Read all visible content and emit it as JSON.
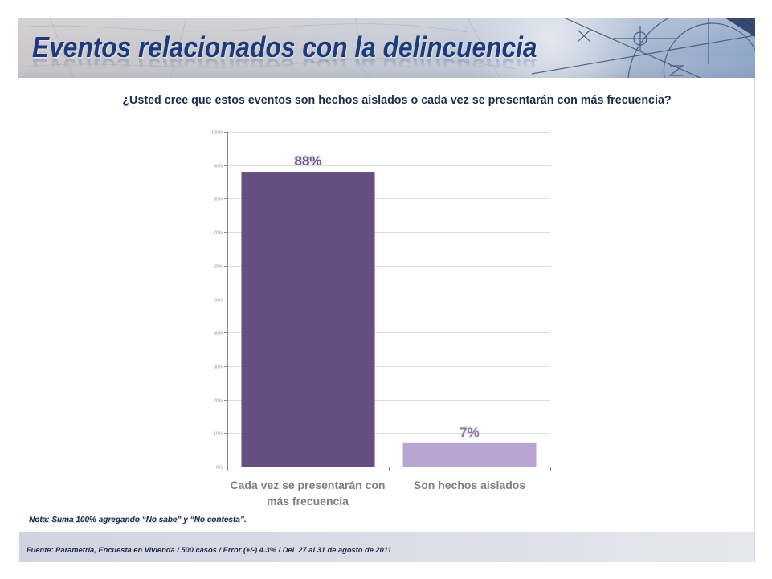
{
  "header": {
    "title": "Eventos relacionados con la delincuencia"
  },
  "chart_data": {
    "type": "bar",
    "title": "¿Usted cree que estos eventos son hechos aislados o cada vez se presentarán con más frecuencia?",
    "categories": [
      "Cada vez se presentarán con más frecuencia",
      "Son hechos aislados"
    ],
    "values": [
      88,
      7
    ],
    "data_labels": [
      "88%",
      "7%"
    ],
    "xlabel": "",
    "ylabel": "",
    "ylim": [
      0,
      100
    ],
    "ytick_values": [
      0,
      10,
      20,
      30,
      40,
      50,
      60,
      70,
      80,
      90,
      100
    ],
    "ytick_labels": [
      "0%",
      "10%",
      "20%",
      "30%",
      "40%",
      "50%",
      "60%",
      "70%",
      "80%",
      "90%",
      "100%"
    ],
    "grid": true,
    "legend": "none",
    "colors": [
      "#654f80",
      "#b9a5d1"
    ],
    "label_colors": [
      "#6a5586",
      "#8b7ba3"
    ]
  },
  "note": "Nota: Suma 100% agregando “No sabe” y “No contesta”.",
  "footer": {
    "source": "Fuente: Parametría, Encuesta en Vivienda / 500 casos / Error (+/-) 4.3% / Del  27 al 31 de agosto de 2011"
  }
}
